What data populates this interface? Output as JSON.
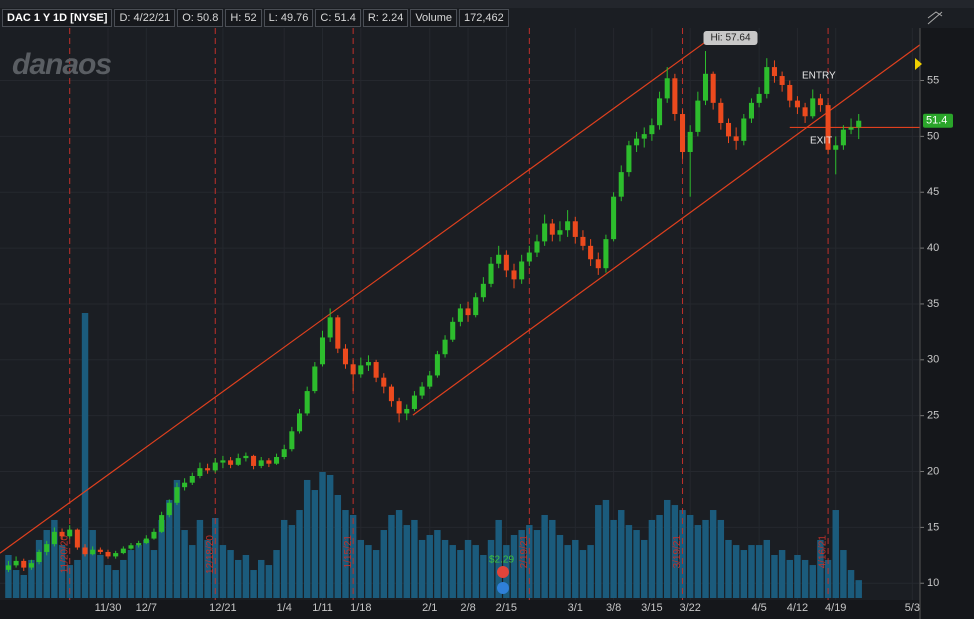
{
  "chart_data": {
    "type": "candlestick",
    "header": [
      "DAC 1 Y 1D [NYSE]",
      "D: 4/22/21",
      "O: 50.8",
      "H: 52",
      "L: 49.76",
      "C: 51.4",
      "R: 2.24",
      "Volume",
      "172,462"
    ],
    "logo": "danaos",
    "open": [
      11.2,
      11.6,
      12.0,
      11.4,
      11.9,
      12.8,
      13.5,
      14.6,
      14.2,
      14.8,
      13.2,
      12.6,
      13.0,
      12.8,
      12.4,
      12.7,
      13.1,
      13.4,
      13.6,
      14.0,
      14.6,
      16.1,
      17.2,
      18.6,
      19.0,
      19.6,
      20.3,
      20.1,
      20.8,
      21.0,
      20.6,
      21.2,
      21.4,
      20.5,
      21.0,
      20.7,
      21.3,
      22.0,
      23.6,
      25.2,
      27.2,
      29.6,
      32.0,
      33.8,
      31.0,
      29.6,
      28.7,
      29.5,
      29.8,
      28.4,
      27.6,
      26.3,
      25.2,
      25.6,
      26.8,
      27.6,
      28.6,
      30.5,
      31.8,
      33.4,
      34.6,
      34.0,
      35.6,
      36.8,
      38.6,
      39.4,
      38.0,
      37.2,
      38.8,
      39.6,
      40.6,
      42.2,
      41.2,
      41.6,
      42.4,
      41.0,
      40.2,
      39.0,
      38.2,
      40.8,
      44.6,
      46.8,
      49.2,
      49.8,
      50.2,
      51.0,
      53.4,
      55.2,
      52.0,
      48.6,
      50.4,
      53.2,
      55.6,
      53.0,
      51.2,
      50.0,
      49.6,
      51.6,
      53.0,
      53.8,
      56.2,
      55.4,
      54.6,
      53.2,
      52.6,
      51.8,
      53.4,
      52.8,
      48.8,
      49.2,
      50.6,
      50.8
    ],
    "high": [
      12.0,
      12.4,
      12.2,
      12.1,
      13.0,
      13.8,
      15.0,
      14.9,
      15.2,
      14.9,
      13.5,
      13.3,
      13.2,
      13.0,
      12.9,
      13.3,
      13.6,
      13.8,
      14.3,
      14.9,
      16.4,
      17.5,
      19.0,
      19.4,
      19.9,
      20.8,
      20.7,
      21.2,
      21.4,
      21.3,
      21.6,
      21.7,
      21.5,
      21.3,
      21.2,
      21.6,
      22.4,
      24.0,
      25.6,
      27.6,
      29.8,
      32.6,
      34.6,
      34.0,
      31.4,
      30.0,
      30.2,
      30.4,
      30.0,
      28.8,
      27.8,
      26.6,
      26.0,
      27.2,
      28.0,
      29.0,
      30.8,
      32.2,
      33.8,
      35.0,
      35.2,
      36.0,
      37.4,
      39.2,
      40.2,
      39.8,
      38.6,
      39.4,
      40.2,
      41.2,
      43.0,
      42.6,
      42.4,
      43.4,
      42.8,
      41.6,
      40.8,
      39.6,
      41.2,
      45.0,
      47.4,
      49.6,
      50.4,
      50.8,
      51.6,
      54.0,
      56.2,
      55.6,
      52.4,
      51.0,
      54.0,
      57.64,
      55.8,
      53.4,
      51.6,
      50.8,
      52.0,
      53.4,
      54.4,
      57.0,
      56.8,
      55.8,
      55.0,
      53.6,
      53.0,
      54.2,
      53.8,
      53.0,
      50.0,
      51.0,
      51.6,
      52.0
    ],
    "low": [
      11.0,
      11.4,
      11.1,
      11.2,
      11.7,
      12.5,
      13.3,
      13.9,
      14.0,
      13.0,
      12.4,
      12.5,
      12.6,
      12.2,
      12.2,
      12.6,
      13.0,
      13.2,
      13.5,
      13.9,
      14.5,
      15.9,
      17.0,
      18.3,
      18.8,
      19.4,
      19.8,
      19.9,
      20.3,
      20.3,
      20.5,
      20.9,
      20.2,
      20.3,
      20.4,
      20.6,
      21.1,
      21.8,
      23.4,
      25.0,
      27.0,
      29.4,
      31.6,
      30.6,
      29.2,
      27.2,
      28.4,
      29.0,
      28.0,
      27.0,
      25.8,
      24.4,
      24.6,
      25.4,
      26.5,
      27.4,
      28.4,
      30.2,
      31.6,
      33.0,
      33.4,
      33.8,
      35.2,
      36.5,
      38.2,
      37.4,
      36.4,
      36.8,
      38.4,
      39.2,
      40.2,
      40.6,
      40.6,
      41.0,
      40.4,
      39.8,
      38.4,
      37.6,
      37.8,
      40.6,
      44.2,
      46.4,
      48.6,
      49.0,
      49.6,
      50.6,
      53.0,
      51.4,
      48.0,
      44.6,
      50.0,
      52.8,
      52.4,
      50.6,
      49.4,
      48.8,
      49.2,
      51.2,
      52.6,
      53.4,
      54.8,
      54.0,
      52.6,
      52.0,
      51.2,
      51.6,
      52.2,
      48.4,
      46.6,
      48.8,
      50.2,
      49.76
    ],
    "close": [
      11.6,
      12.0,
      11.4,
      11.8,
      12.8,
      13.5,
      14.6,
      14.2,
      14.8,
      13.2,
      12.6,
      13.0,
      12.8,
      12.4,
      12.7,
      13.1,
      13.4,
      13.6,
      14.0,
      14.6,
      16.1,
      17.2,
      18.6,
      19.0,
      19.6,
      20.3,
      20.1,
      20.8,
      21.0,
      20.6,
      21.2,
      21.4,
      20.5,
      21.0,
      20.7,
      21.3,
      22.0,
      23.6,
      25.2,
      27.2,
      29.4,
      32.0,
      33.8,
      31.0,
      29.6,
      28.7,
      29.5,
      29.8,
      28.4,
      27.6,
      26.3,
      25.2,
      25.6,
      26.8,
      27.6,
      28.6,
      30.5,
      31.8,
      33.4,
      34.6,
      34.0,
      35.6,
      36.8,
      38.6,
      39.4,
      38.0,
      37.2,
      38.8,
      39.6,
      40.6,
      42.2,
      41.2,
      41.6,
      42.4,
      41.0,
      40.2,
      39.0,
      38.2,
      40.8,
      44.6,
      46.8,
      49.2,
      49.8,
      50.2,
      51.0,
      53.4,
      55.2,
      52.0,
      48.6,
      50.4,
      53.2,
      55.6,
      53.0,
      51.2,
      50.0,
      49.6,
      51.6,
      53.0,
      53.8,
      56.2,
      55.4,
      54.6,
      53.2,
      52.6,
      51.8,
      53.4,
      52.8,
      48.8,
      49.2,
      50.6,
      50.8,
      51.4
    ],
    "volume": [
      415000,
      270000,
      222000,
      367000,
      560000,
      656000,
      753000,
      511000,
      318000,
      367000,
      2750000,
      656000,
      415000,
      318000,
      270000,
      367000,
      463000,
      511000,
      560000,
      463000,
      753000,
      946000,
      1139000,
      656000,
      511000,
      753000,
      560000,
      772000,
      511000,
      463000,
      367000,
      415000,
      270000,
      367000,
      318000,
      463000,
      753000,
      704000,
      849000,
      1139000,
      1042000,
      1216000,
      1187000,
      994000,
      849000,
      801000,
      560000,
      511000,
      463000,
      656000,
      801000,
      849000,
      704000,
      753000,
      560000,
      608000,
      656000,
      560000,
      511000,
      463000,
      560000,
      511000,
      415000,
      560000,
      753000,
      511000,
      608000,
      656000,
      704000,
      656000,
      801000,
      753000,
      608000,
      511000,
      560000,
      463000,
      511000,
      897000,
      946000,
      753000,
      849000,
      704000,
      656000,
      560000,
      753000,
      801000,
      946000,
      897000,
      849000,
      801000,
      704000,
      753000,
      849000,
      753000,
      560000,
      511000,
      463000,
      511000,
      511000,
      560000,
      415000,
      463000,
      367000,
      415000,
      367000,
      318000,
      560000,
      367000,
      849000,
      463000,
      270000,
      172462
    ],
    "up_color": "#2dbd2d",
    "down_color": "#ec4a1e",
    "volume_color": "#1b5b7c",
    "xlim": [
      -1.1,
      119
    ],
    "xticks": [
      {
        "value": 13,
        "label": "11/30"
      },
      {
        "value": 18,
        "label": "12/7"
      },
      {
        "value": 28,
        "label": "12/21"
      },
      {
        "value": 36,
        "label": "1/4"
      },
      {
        "value": 41,
        "label": "1/11"
      },
      {
        "value": 46,
        "label": "1/18"
      },
      {
        "value": 55,
        "label": "2/1"
      },
      {
        "value": 60,
        "label": "2/8"
      },
      {
        "value": 65,
        "label": "2/15"
      },
      {
        "value": 74,
        "label": "3/1"
      },
      {
        "value": 79,
        "label": "3/8"
      },
      {
        "value": 84,
        "label": "3/15"
      },
      {
        "value": 89,
        "label": "3/22"
      },
      {
        "value": 98,
        "label": "4/5"
      },
      {
        "value": 103,
        "label": "4/12"
      },
      {
        "value": 108,
        "label": "4/19"
      },
      {
        "value": 118,
        "label": "5/3"
      }
    ],
    "ylim": [
      8.5,
      59.7
    ],
    "yticks": [
      10,
      15,
      20,
      25,
      30,
      35,
      40,
      45,
      50,
      55
    ],
    "volume_lim": [
      0,
      5500000
    ],
    "expirations": [
      {
        "value": 8,
        "label": "11/20/20"
      },
      {
        "value": 27,
        "label": "12/18/20"
      },
      {
        "value": 45,
        "label": "1/15/21"
      },
      {
        "value": 68,
        "label": "2/19/21"
      },
      {
        "value": 88,
        "label": "3/19/21"
      },
      {
        "value": 107,
        "label": "4/16/21"
      }
    ],
    "trendlines": [
      {
        "x": [
          -1.1,
          91.9
        ],
        "y": [
          12.7,
          58.9
        ]
      },
      {
        "x": [
          52.8,
          119
        ],
        "y": [
          25.05,
          58.2
        ]
      }
    ],
    "exit_level": {
      "x": [
        102,
        119
      ],
      "y": 50.8
    },
    "high_label": "Hi: 57.64",
    "entry_label": "ENTRY",
    "exit_label": "EXIT",
    "dividend_label": "$2.29"
  }
}
